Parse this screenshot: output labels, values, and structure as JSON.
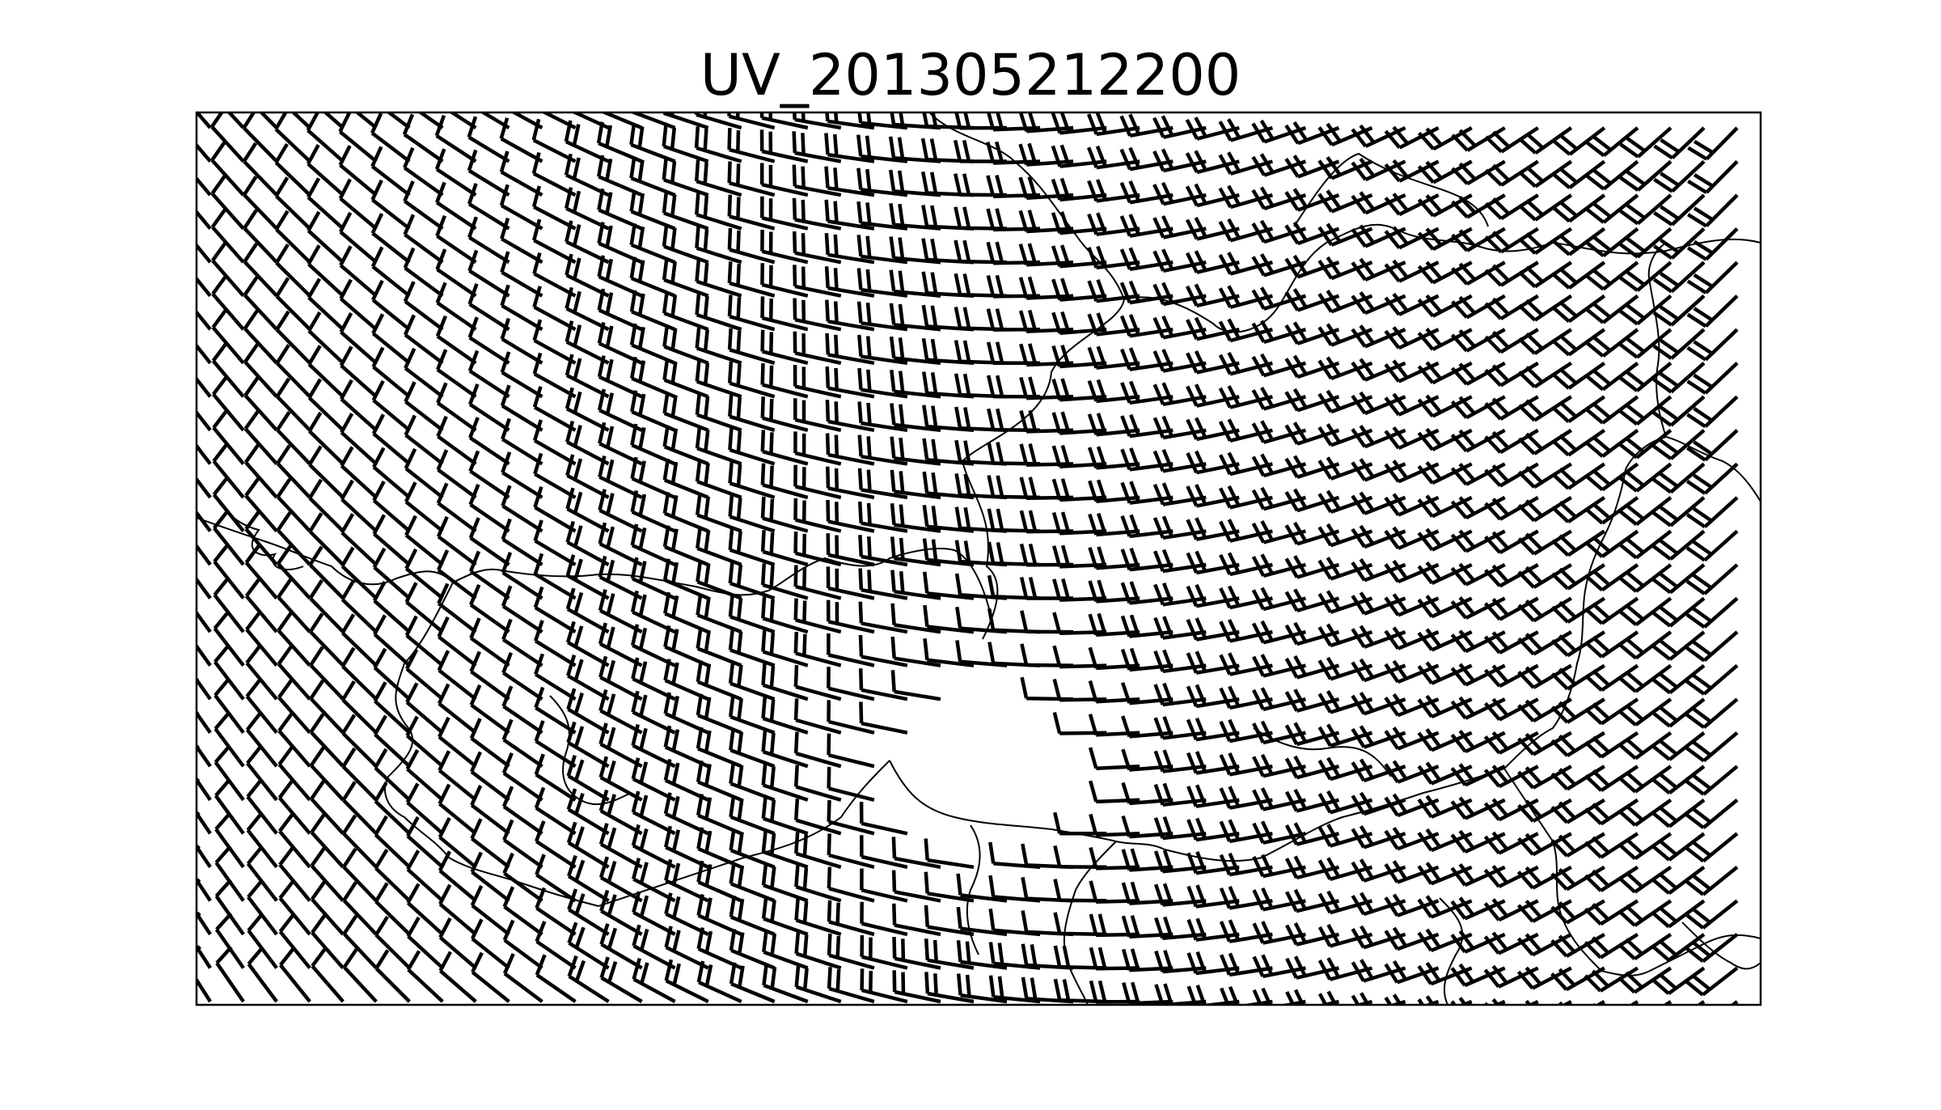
{
  "figure": {
    "title": "UV_201305212200"
  },
  "map": {
    "field": "wind-barbs",
    "grid_columns": 47,
    "grid_rows": 27,
    "line_color": "#000000",
    "background_color": "#ffffff",
    "calm_region": "center"
  }
}
